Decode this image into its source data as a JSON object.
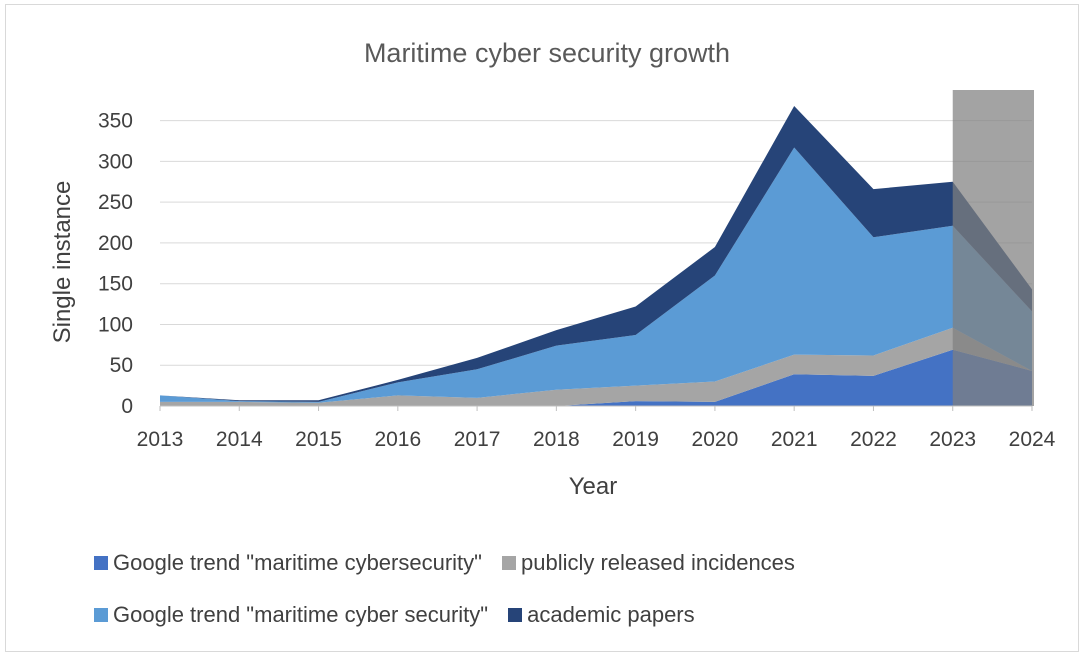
{
  "chart_data": {
    "type": "area",
    "stacked": true,
    "title": "Maritime cyber security growth",
    "xlabel": "Year",
    "ylabel": "Single instance",
    "x": [
      "2013",
      "2014",
      "2015",
      "2016",
      "2017",
      "2018",
      "2019",
      "2020",
      "2021",
      "2022",
      "2023",
      "2024"
    ],
    "yticks": [
      "0",
      "50",
      "100",
      "150",
      "200",
      "250",
      "300",
      "350"
    ],
    "ylim": [
      0,
      390
    ],
    "grid": true,
    "legend_position": "bottom",
    "series": [
      {
        "name": "Google trend \"maritime cybersecurity\"",
        "color": "#4472c4",
        "values": [
          0,
          0,
          0,
          0,
          0,
          0,
          6,
          5,
          39,
          37,
          69,
          43
        ]
      },
      {
        "name": "publicly released incidences",
        "color": "#a5a5a5",
        "values": [
          5,
          5,
          4,
          13,
          10,
          20,
          19,
          25,
          24,
          25,
          27,
          0
        ]
      },
      {
        "name": "Google trend \"maritime cyber security\"",
        "color": "#5b9bd5",
        "values": [
          8,
          1,
          1,
          16,
          35,
          54,
          62,
          130,
          254,
          145,
          125,
          73
        ]
      },
      {
        "name": "academic papers",
        "color": "#264478",
        "values": [
          0,
          1,
          2,
          3,
          14,
          19,
          35,
          35,
          51,
          59,
          54,
          27
        ]
      }
    ],
    "highlight": {
      "from": "2023",
      "to": "2024",
      "color": "#808080"
    },
    "legend_rows": [
      [
        0,
        1
      ],
      [
        2,
        3
      ]
    ]
  }
}
